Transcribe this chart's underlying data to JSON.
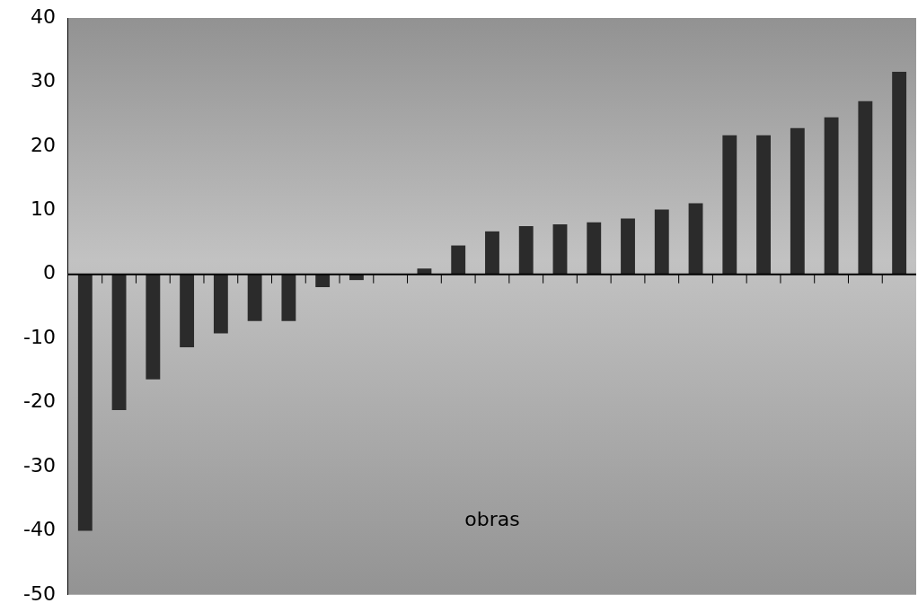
{
  "chart_data": {
    "type": "bar",
    "xlabel": "obras",
    "categories": [
      null,
      null,
      null,
      null,
      null,
      null,
      null,
      null,
      null,
      null,
      null,
      null,
      null,
      null,
      null,
      null,
      null,
      null,
      null,
      null,
      null,
      null,
      null,
      null,
      null
    ],
    "values": [
      -40,
      -21.2,
      -16.4,
      -11.4,
      -9.2,
      -7.3,
      -7.3,
      -2.0,
      -0.9,
      0,
      0.9,
      4.5,
      6.7,
      7.5,
      7.8,
      8.1,
      8.7,
      10.1,
      11.1,
      21.7,
      21.7,
      22.8,
      24.5,
      27.0,
      31.6
    ],
    "color": "#2b2b2b",
    "ylim": [
      -50,
      40
    ],
    "yticks": [
      -50,
      -40,
      -30,
      -20,
      -10,
      0,
      10,
      20,
      30,
      40
    ],
    "legend": false
  }
}
